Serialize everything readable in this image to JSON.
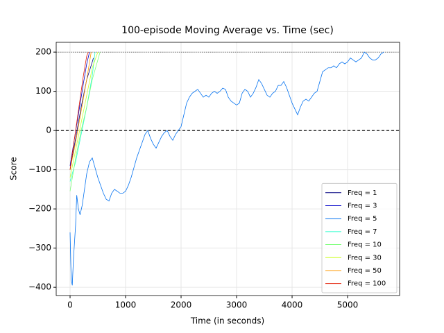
{
  "chart_data": {
    "type": "line",
    "title": "100-episode Moving Average vs. Time (sec)",
    "x_label": "Time (in seconds)",
    "y_label": "Score",
    "xlim": [
      -250,
      5937
    ],
    "ylim": [
      -421,
      225
    ],
    "xticks": [
      0,
      1000,
      2000,
      3000,
      4000,
      5000
    ],
    "yticks": [
      {
        "value": -400,
        "label": "−400"
      },
      {
        "value": -300,
        "label": "−300"
      },
      {
        "value": -200,
        "label": "−200"
      },
      {
        "value": -100,
        "label": "−100"
      },
      0,
      100,
      200
    ],
    "grid": true,
    "legend": "lower right",
    "reference_lines": [
      {
        "y": 0,
        "style": "dashed"
      },
      {
        "y": 200,
        "style": "dotted"
      }
    ],
    "series": [
      {
        "name": "Freq = 1",
        "color": "#000080",
        "x": [
          0,
          100,
          200,
          300,
          400,
          420
        ],
        "values": [
          -100,
          -20,
          60,
          130,
          175,
          185
        ]
      },
      {
        "name": "Freq = 3",
        "color": "#0000c8",
        "x": [
          0,
          80,
          160,
          240,
          300,
          350
        ],
        "values": [
          -90,
          -20,
          50,
          120,
          170,
          200
        ]
      },
      {
        "name": "Freq = 5",
        "color": "#0070f0",
        "x": [
          0,
          20,
          40,
          60,
          100,
          120,
          150,
          180,
          220,
          260,
          300,
          350,
          400,
          450,
          500,
          550,
          600,
          650,
          700,
          750,
          800,
          850,
          900,
          950,
          1000,
          1050,
          1100,
          1150,
          1200,
          1250,
          1300,
          1350,
          1400,
          1450,
          1500,
          1550,
          1600,
          1650,
          1700,
          1750,
          1800,
          1850,
          1900,
          1950,
          2000,
          2050,
          2100,
          2150,
          2200,
          2250,
          2300,
          2350,
          2400,
          2450,
          2500,
          2550,
          2600,
          2650,
          2700,
          2750,
          2800,
          2850,
          2900,
          2950,
          3000,
          3050,
          3100,
          3150,
          3200,
          3250,
          3300,
          3350,
          3400,
          3450,
          3500,
          3550,
          3600,
          3650,
          3700,
          3750,
          3800,
          3850,
          3900,
          3950,
          4000,
          4050,
          4100,
          4150,
          4200,
          4250,
          4300,
          4350,
          4400,
          4450,
          4500,
          4550,
          4600,
          4650,
          4700,
          4750,
          4800,
          4850,
          4900,
          4950,
          5000,
          5050,
          5100,
          5150,
          5200,
          5250,
          5300,
          5350,
          5400,
          5450,
          5500,
          5550,
          5600,
          5650
        ],
        "values": [
          -260,
          -380,
          -395,
          -330,
          -240,
          -165,
          -200,
          -215,
          -190,
          -150,
          -110,
          -80,
          -70,
          -95,
          -120,
          -140,
          -160,
          -175,
          -180,
          -160,
          -150,
          -155,
          -160,
          -160,
          -155,
          -140,
          -120,
          -95,
          -70,
          -50,
          -30,
          -10,
          0,
          -20,
          -35,
          -45,
          -30,
          -15,
          -5,
          0,
          -15,
          -25,
          -10,
          0,
          10,
          40,
          70,
          85,
          95,
          100,
          105,
          95,
          85,
          90,
          85,
          95,
          100,
          95,
          100,
          108,
          105,
          85,
          75,
          70,
          65,
          70,
          95,
          105,
          100,
          85,
          95,
          110,
          130,
          120,
          105,
          90,
          85,
          95,
          100,
          115,
          115,
          125,
          110,
          90,
          70,
          55,
          40,
          60,
          75,
          80,
          75,
          85,
          95,
          100,
          125,
          150,
          155,
          160,
          160,
          165,
          160,
          170,
          175,
          170,
          175,
          185,
          180,
          175,
          180,
          185,
          200,
          195,
          185,
          180,
          180,
          185,
          195,
          200
        ]
      },
      {
        "name": "Freq = 7",
        "color": "#29ffce",
        "x": [
          0,
          100,
          200,
          300,
          400,
          450
        ],
        "values": [
          -130,
          -80,
          -10,
          60,
          140,
          200
        ]
      },
      {
        "name": "Freq = 10",
        "color": "#7dff7a",
        "x": [
          0,
          100,
          200,
          300,
          400,
          500,
          540
        ],
        "values": [
          -155,
          -70,
          0,
          60,
          130,
          180,
          200
        ]
      },
      {
        "name": "Freq = 30",
        "color": "#ceff29",
        "x": [
          0,
          100,
          200,
          300,
          400,
          500
        ],
        "values": [
          -120,
          -50,
          20,
          90,
          160,
          200
        ]
      },
      {
        "name": "Freq = 50",
        "color": "#ff9a00",
        "x": [
          0,
          100,
          200,
          300,
          380
        ],
        "values": [
          -100,
          -30,
          50,
          130,
          200
        ]
      },
      {
        "name": "Freq = 100",
        "color": "#e31a00",
        "x": [
          0,
          60,
          120,
          180,
          240,
          300,
          330
        ],
        "values": [
          -100,
          -40,
          20,
          80,
          140,
          190,
          200
        ]
      }
    ]
  }
}
